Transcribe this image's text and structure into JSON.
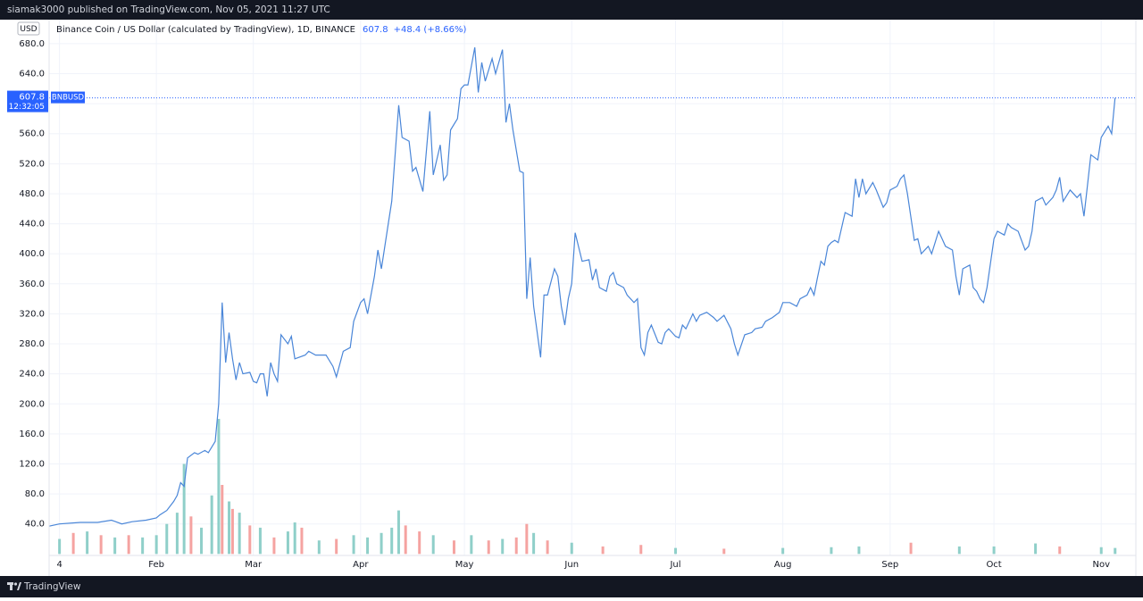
{
  "header": {
    "text": "siamak3000 published on TradingView.com, Nov 05, 2021 11:27 UTC"
  },
  "footer": {
    "brand": "TradingView"
  },
  "chart_data": {
    "type": "line",
    "title": "Binance Coin / US Dollar (calculated by TradingView), 1D, BINANCE",
    "currency": "USD",
    "symbol": "BNBUSD",
    "last_price": 607.8,
    "change": "+48.4 (+8.66%)",
    "countdown": "12:32:05",
    "color": "#4a86d8",
    "grid": true,
    "xlim": [
      "2021-01-01",
      "2021-11-11"
    ],
    "ylim": [
      -2,
      712
    ],
    "xticks": [
      {
        "value": "2021-01-04",
        "label": "4"
      },
      {
        "value": "2021-02-01",
        "label": "Feb"
      },
      {
        "value": "2021-03-01",
        "label": "Mar"
      },
      {
        "value": "2021-04-01",
        "label": "Apr"
      },
      {
        "value": "2021-05-01",
        "label": "May"
      },
      {
        "value": "2021-06-01",
        "label": "Jun"
      },
      {
        "value": "2021-07-01",
        "label": "Jul"
      },
      {
        "value": "2021-08-01",
        "label": "Aug"
      },
      {
        "value": "2021-09-01",
        "label": "Sep"
      },
      {
        "value": "2021-10-01",
        "label": "Oct"
      },
      {
        "value": "2021-11-01",
        "label": "Nov"
      }
    ],
    "yticks": [
      {
        "value": 40,
        "label": "40.0"
      },
      {
        "value": 80,
        "label": "80.0"
      },
      {
        "value": 120,
        "label": "120.0"
      },
      {
        "value": 160,
        "label": "160.0"
      },
      {
        "value": 200,
        "label": "200.0"
      },
      {
        "value": 240,
        "label": "240.0"
      },
      {
        "value": 280,
        "label": "280.0"
      },
      {
        "value": 320,
        "label": "320.0"
      },
      {
        "value": 360,
        "label": "360.0"
      },
      {
        "value": 400,
        "label": "400.0"
      },
      {
        "value": 440,
        "label": "440.0"
      },
      {
        "value": 480,
        "label": "480.0"
      },
      {
        "value": 520,
        "label": "520.0"
      },
      {
        "value": 560,
        "label": "560.0"
      },
      {
        "value": 600,
        "label": "600.0"
      },
      {
        "value": 640,
        "label": "640.0"
      },
      {
        "value": 680,
        "label": "680.0"
      }
    ],
    "x": [
      "2021-01-01",
      "2021-01-04",
      "2021-01-10",
      "2021-01-15",
      "2021-01-19",
      "2021-01-22",
      "2021-01-25",
      "2021-01-29",
      "2021-02-01",
      "2021-02-02",
      "2021-02-04",
      "2021-02-06",
      "2021-02-07",
      "2021-02-08",
      "2021-02-09",
      "2021-02-10",
      "2021-02-12",
      "2021-02-13",
      "2021-02-15",
      "2021-02-16",
      "2021-02-18",
      "2021-02-19",
      "2021-02-20",
      "2021-02-21",
      "2021-02-22",
      "2021-02-23",
      "2021-02-24",
      "2021-02-25",
      "2021-02-26",
      "2021-02-28",
      "2021-03-01",
      "2021-03-02",
      "2021-03-03",
      "2021-03-04",
      "2021-03-05",
      "2021-03-06",
      "2021-03-07",
      "2021-03-08",
      "2021-03-09",
      "2021-03-11",
      "2021-03-12",
      "2021-03-13",
      "2021-03-16",
      "2021-03-17",
      "2021-03-19",
      "2021-03-22",
      "2021-03-24",
      "2021-03-25",
      "2021-03-27",
      "2021-03-29",
      "2021-03-30",
      "2021-04-01",
      "2021-04-02",
      "2021-04-03",
      "2021-04-05",
      "2021-04-06",
      "2021-04-07",
      "2021-04-09",
      "2021-04-10",
      "2021-04-12",
      "2021-04-13",
      "2021-04-15",
      "2021-04-16",
      "2021-04-17",
      "2021-04-19",
      "2021-04-21",
      "2021-04-22",
      "2021-04-24",
      "2021-04-25",
      "2021-04-26",
      "2021-04-27",
      "2021-04-29",
      "2021-04-30",
      "2021-05-01",
      "2021-05-02",
      "2021-05-04",
      "2021-05-05",
      "2021-05-06",
      "2021-05-07",
      "2021-05-09",
      "2021-05-10",
      "2021-05-12",
      "2021-05-13",
      "2021-05-14",
      "2021-05-15",
      "2021-05-17",
      "2021-05-18",
      "2021-05-19",
      "2021-05-20",
      "2021-05-21",
      "2021-05-23",
      "2021-05-24",
      "2021-05-25",
      "2021-05-27",
      "2021-05-28",
      "2021-05-29",
      "2021-05-30",
      "2021-05-31",
      "2021-06-01",
      "2021-06-02",
      "2021-06-04",
      "2021-06-06",
      "2021-06-07",
      "2021-06-08",
      "2021-06-09",
      "2021-06-11",
      "2021-06-12",
      "2021-06-13",
      "2021-06-14",
      "2021-06-16",
      "2021-06-17",
      "2021-06-19",
      "2021-06-20",
      "2021-06-21",
      "2021-06-22",
      "2021-06-23",
      "2021-06-24",
      "2021-06-26",
      "2021-06-27",
      "2021-06-28",
      "2021-06-29",
      "2021-07-01",
      "2021-07-02",
      "2021-07-03",
      "2021-07-04",
      "2021-07-06",
      "2021-07-07",
      "2021-07-08",
      "2021-07-10",
      "2021-07-12",
      "2021-07-13",
      "2021-07-15",
      "2021-07-17",
      "2021-07-18",
      "2021-07-19",
      "2021-07-21",
      "2021-07-23",
      "2021-07-24",
      "2021-07-26",
      "2021-07-27",
      "2021-07-29",
      "2021-07-31",
      "2021-08-01",
      "2021-08-03",
      "2021-08-05",
      "2021-08-06",
      "2021-08-08",
      "2021-08-09",
      "2021-08-10",
      "2021-08-11",
      "2021-08-12",
      "2021-08-13",
      "2021-08-14",
      "2021-08-15",
      "2021-08-16",
      "2021-08-17",
      "2021-08-19",
      "2021-08-21",
      "2021-08-22",
      "2021-08-23",
      "2021-08-24",
      "2021-08-25",
      "2021-08-27",
      "2021-08-28",
      "2021-08-30",
      "2021-08-31",
      "2021-09-01",
      "2021-09-03",
      "2021-09-04",
      "2021-09-05",
      "2021-09-06",
      "2021-09-08",
      "2021-09-09",
      "2021-09-10",
      "2021-09-12",
      "2021-09-13",
      "2021-09-15",
      "2021-09-16",
      "2021-09-17",
      "2021-09-19",
      "2021-09-20",
      "2021-09-21",
      "2021-09-22",
      "2021-09-24",
      "2021-09-25",
      "2021-09-26",
      "2021-09-27",
      "2021-09-28",
      "2021-09-29",
      "2021-10-01",
      "2021-10-02",
      "2021-10-04",
      "2021-10-05",
      "2021-10-06",
      "2021-10-08",
      "2021-10-10",
      "2021-10-11",
      "2021-10-12",
      "2021-10-13",
      "2021-10-15",
      "2021-10-16",
      "2021-10-18",
      "2021-10-19",
      "2021-10-20",
      "2021-10-21",
      "2021-10-23",
      "2021-10-25",
      "2021-10-26",
      "2021-10-27",
      "2021-10-28",
      "2021-10-29",
      "2021-10-31",
      "2021-11-01",
      "2021-11-03",
      "2021-11-04",
      "2021-11-05"
    ],
    "values": [
      37,
      40,
      42,
      42,
      45,
      40,
      43,
      45,
      48,
      52,
      58,
      70,
      78,
      95,
      90,
      128,
      135,
      133,
      138,
      135,
      150,
      200,
      335,
      255,
      295,
      260,
      232,
      255,
      240,
      242,
      230,
      228,
      240,
      240,
      210,
      255,
      240,
      230,
      292,
      280,
      290,
      260,
      265,
      270,
      265,
      265,
      250,
      236,
      270,
      275,
      310,
      335,
      340,
      320,
      370,
      405,
      380,
      440,
      470,
      598,
      555,
      550,
      510,
      515,
      483,
      590,
      505,
      545,
      498,
      505,
      565,
      580,
      620,
      625,
      625,
      675,
      615,
      655,
      630,
      660,
      640,
      672,
      575,
      600,
      565,
      510,
      508,
      340,
      395,
      330,
      262,
      345,
      345,
      380,
      370,
      330,
      305,
      340,
      360,
      428,
      390,
      392,
      365,
      380,
      355,
      350,
      370,
      375,
      360,
      355,
      345,
      335,
      340,
      275,
      265,
      295,
      305,
      282,
      280,
      295,
      300,
      290,
      288,
      305,
      300,
      320,
      310,
      318,
      322,
      315,
      310,
      318,
      300,
      280,
      265,
      292,
      295,
      300,
      302,
      310,
      315,
      322,
      335,
      335,
      330,
      340,
      345,
      355,
      345,
      368,
      390,
      385,
      410,
      415,
      418,
      415,
      455,
      450,
      500,
      475,
      500,
      480,
      495,
      485,
      462,
      468,
      485,
      490,
      500,
      505,
      480,
      418,
      420,
      400,
      410,
      400,
      430,
      420,
      410,
      405,
      370,
      345,
      380,
      385,
      355,
      350,
      340,
      335,
      355,
      420,
      430,
      425,
      440,
      435,
      430,
      405,
      410,
      430,
      470,
      475,
      465,
      475,
      485,
      502,
      470,
      485,
      475,
      480,
      450,
      490,
      532,
      525,
      555,
      570,
      560,
      607.8
    ],
    "volume": {
      "x": [
        "2021-01-04",
        "2021-01-08",
        "2021-01-12",
        "2021-01-16",
        "2021-01-20",
        "2021-01-24",
        "2021-01-28",
        "2021-02-01",
        "2021-02-04",
        "2021-02-07",
        "2021-02-09",
        "2021-02-11",
        "2021-02-14",
        "2021-02-17",
        "2021-02-19",
        "2021-02-20",
        "2021-02-22",
        "2021-02-23",
        "2021-02-25",
        "2021-02-28",
        "2021-03-03",
        "2021-03-07",
        "2021-03-11",
        "2021-03-13",
        "2021-03-15",
        "2021-03-20",
        "2021-03-25",
        "2021-03-30",
        "2021-04-03",
        "2021-04-07",
        "2021-04-10",
        "2021-04-12",
        "2021-04-14",
        "2021-04-18",
        "2021-04-22",
        "2021-04-28",
        "2021-05-03",
        "2021-05-08",
        "2021-05-12",
        "2021-05-16",
        "2021-05-19",
        "2021-05-21",
        "2021-05-25",
        "2021-06-01",
        "2021-06-10",
        "2021-06-21",
        "2021-07-01",
        "2021-07-15",
        "2021-08-01",
        "2021-08-15",
        "2021-08-23",
        "2021-09-07",
        "2021-09-21",
        "2021-10-01",
        "2021-10-13",
        "2021-10-20",
        "2021-11-01",
        "2021-11-05"
      ],
      "values": [
        20,
        28,
        30,
        25,
        22,
        25,
        22,
        25,
        40,
        55,
        120,
        50,
        35,
        78,
        180,
        92,
        70,
        60,
        55,
        38,
        35,
        22,
        30,
        42,
        35,
        18,
        20,
        25,
        22,
        28,
        35,
        58,
        38,
        30,
        25,
        18,
        25,
        18,
        20,
        22,
        40,
        28,
        18,
        15,
        10,
        12,
        8,
        7,
        8,
        9,
        10,
        15,
        10,
        10,
        14,
        10,
        9,
        8
      ],
      "colors": [
        "#8fcfc9",
        "#f5a3a1",
        "#8fcfc9",
        "#f5a3a1",
        "#8fcfc9",
        "#f5a3a1",
        "#8fcfc9",
        "#8fcfc9",
        "#8fcfc9",
        "#8fcfc9",
        "#8fcfc9",
        "#f5a3a1",
        "#8fcfc9",
        "#8fcfc9",
        "#8fcfc9",
        "#f5a3a1",
        "#8fcfc9",
        "#f5a3a1",
        "#8fcfc9",
        "#f5a3a1",
        "#8fcfc9",
        "#f5a3a1",
        "#8fcfc9",
        "#8fcfc9",
        "#f5a3a1",
        "#8fcfc9",
        "#f5a3a1",
        "#8fcfc9",
        "#8fcfc9",
        "#8fcfc9",
        "#8fcfc9",
        "#8fcfc9",
        "#f5a3a1",
        "#f5a3a1",
        "#8fcfc9",
        "#f5a3a1",
        "#8fcfc9",
        "#f5a3a1",
        "#8fcfc9",
        "#f5a3a1",
        "#f5a3a1",
        "#8fcfc9",
        "#f5a3a1",
        "#8fcfc9",
        "#f5a3a1",
        "#f5a3a1",
        "#8fcfc9",
        "#f5a3a1",
        "#8fcfc9",
        "#8fcfc9",
        "#8fcfc9",
        "#f5a3a1",
        "#8fcfc9",
        "#8fcfc9",
        "#8fcfc9",
        "#f5a3a1",
        "#8fcfc9",
        "#8fcfc9"
      ]
    }
  }
}
